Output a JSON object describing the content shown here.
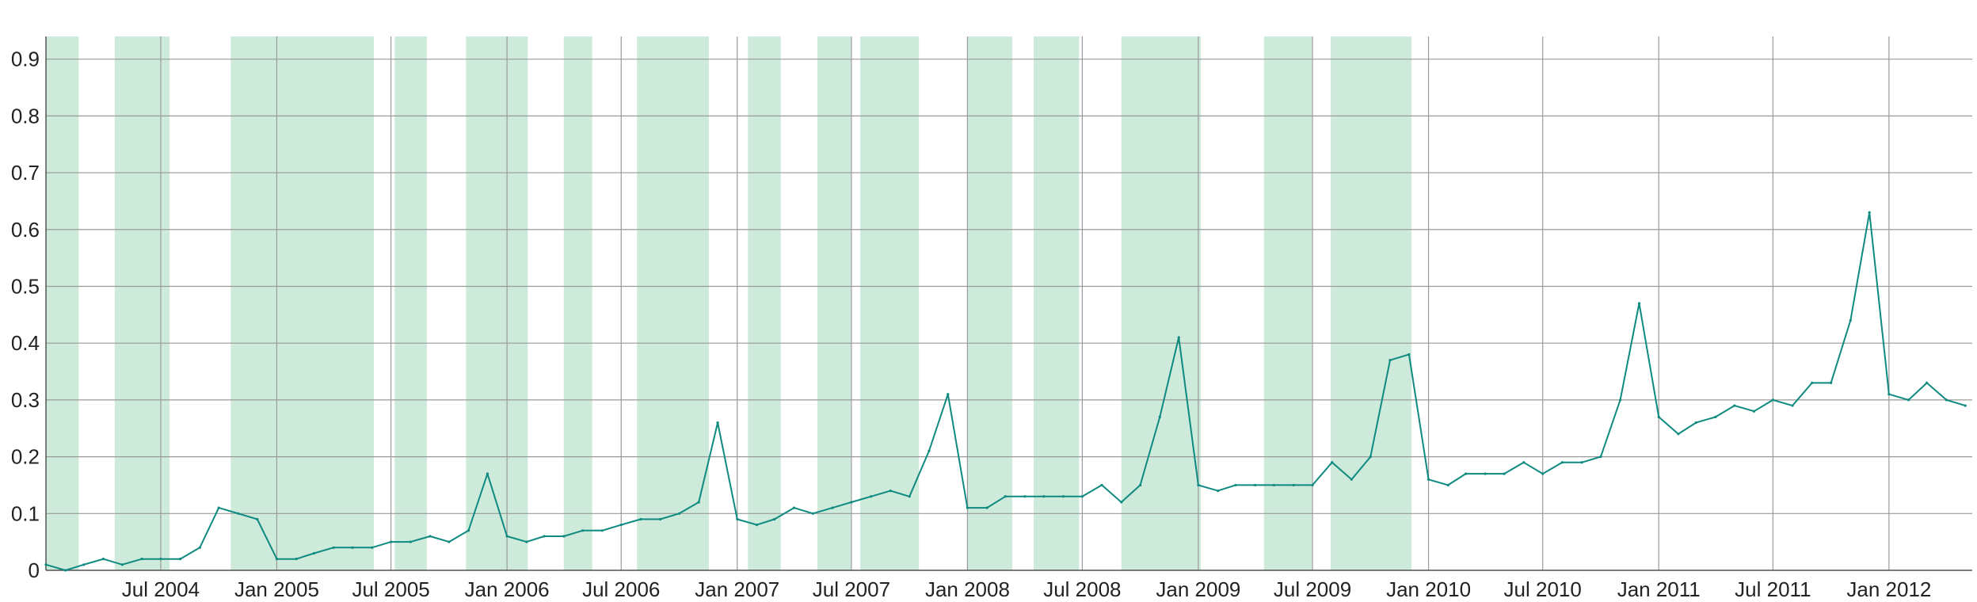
{
  "chart_data": {
    "type": "line",
    "title": "",
    "xlabel": "",
    "ylabel": "",
    "x_range": [
      "2004-01-01",
      "2012-05-12"
    ],
    "ylim": [
      0,
      0.94
    ],
    "y_ticks": [
      0,
      0.1,
      0.2,
      0.3,
      0.4,
      0.5,
      0.6,
      0.7,
      0.8,
      0.9
    ],
    "y_tick_labels": [
      "0",
      "0.1",
      "0.2",
      "0.3",
      "0.4",
      "0.5",
      "0.6",
      "0.7",
      "0.8",
      "0.9"
    ],
    "x_ticks": [
      "2004-07-01",
      "2005-01-01",
      "2005-07-01",
      "2006-01-01",
      "2006-07-01",
      "2007-01-01",
      "2007-07-01",
      "2008-01-01",
      "2008-07-01",
      "2009-01-01",
      "2009-07-01",
      "2010-01-01",
      "2010-07-01",
      "2011-01-01",
      "2011-07-01",
      "2012-01-01"
    ],
    "x_tick_labels": [
      "Jul 2004",
      "Jan 2005",
      "Jul 2005",
      "Jan 2006",
      "Jul 2006",
      "Jan 2007",
      "Jul 2007",
      "Jan 2008",
      "Jul 2008",
      "Jan 2009",
      "Jul 2009",
      "Jan 2010",
      "Jul 2010",
      "Jan 2011",
      "Jul 2011",
      "Jan 2012"
    ],
    "grid": true,
    "legend": "none",
    "colors": {
      "line": "#0e8a80",
      "band": "#cdeadb",
      "grid": "#9a9a9a",
      "axis": "#555555"
    },
    "bands": [
      [
        "2004-01-01",
        "2004-02-22"
      ],
      [
        "2004-04-19",
        "2004-07-15"
      ],
      [
        "2004-10-20",
        "2005-06-04"
      ],
      [
        "2005-07-07",
        "2005-08-27"
      ],
      [
        "2005-10-28",
        "2006-02-03"
      ],
      [
        "2006-04-01",
        "2006-05-16"
      ],
      [
        "2006-07-26",
        "2006-11-17"
      ],
      [
        "2007-01-18",
        "2007-03-11"
      ],
      [
        "2007-05-08",
        "2007-06-30"
      ],
      [
        "2007-07-15",
        "2007-10-16"
      ],
      [
        "2008-01-01",
        "2008-03-12"
      ],
      [
        "2008-04-15",
        "2008-06-26"
      ],
      [
        "2008-09-01",
        "2009-01-05"
      ],
      [
        "2009-04-15",
        "2009-06-30"
      ],
      [
        "2009-07-30",
        "2009-12-05"
      ]
    ],
    "series": [
      {
        "name": "",
        "x": [
          "2004-01-01",
          "2004-02-01",
          "2004-03-01",
          "2004-04-01",
          "2004-05-01",
          "2004-06-01",
          "2004-07-01",
          "2004-08-01",
          "2004-09-01",
          "2004-10-01",
          "2004-11-01",
          "2004-12-01",
          "2005-01-01",
          "2005-02-01",
          "2005-03-01",
          "2005-04-01",
          "2005-05-01",
          "2005-06-01",
          "2005-07-01",
          "2005-08-01",
          "2005-09-01",
          "2005-10-01",
          "2005-11-01",
          "2005-12-01",
          "2006-01-01",
          "2006-02-01",
          "2006-03-01",
          "2006-04-01",
          "2006-05-01",
          "2006-06-01",
          "2006-07-01",
          "2006-08-01",
          "2006-09-01",
          "2006-10-01",
          "2006-11-01",
          "2006-12-01",
          "2007-01-01",
          "2007-02-01",
          "2007-03-01",
          "2007-04-01",
          "2007-05-01",
          "2007-06-01",
          "2007-07-01",
          "2007-08-01",
          "2007-09-01",
          "2007-10-01",
          "2007-11-01",
          "2007-12-01",
          "2008-01-01",
          "2008-02-01",
          "2008-03-01",
          "2008-04-01",
          "2008-05-01",
          "2008-06-01",
          "2008-07-01",
          "2008-08-01",
          "2008-09-01",
          "2008-10-01",
          "2008-11-01",
          "2008-12-01",
          "2009-01-01",
          "2009-02-01",
          "2009-03-01",
          "2009-04-01",
          "2009-05-01",
          "2009-06-01",
          "2009-07-01",
          "2009-08-01",
          "2009-09-01",
          "2009-10-01",
          "2009-11-01",
          "2009-12-01",
          "2010-01-01",
          "2010-02-01",
          "2010-03-01",
          "2010-04-01",
          "2010-05-01",
          "2010-06-01",
          "2010-07-01",
          "2010-08-01",
          "2010-09-01",
          "2010-10-01",
          "2010-11-01",
          "2010-12-01",
          "2011-01-01",
          "2011-02-01",
          "2011-03-01",
          "2011-04-01",
          "2011-05-01",
          "2011-06-01",
          "2011-07-01",
          "2011-08-01",
          "2011-09-01",
          "2011-10-01",
          "2011-11-01",
          "2011-12-01",
          "2012-01-01",
          "2012-02-01",
          "2012-03-01",
          "2012-04-01",
          "2012-05-01"
        ],
        "values": [
          0.01,
          0.0,
          0.01,
          0.02,
          0.01,
          0.02,
          0.02,
          0.02,
          0.04,
          0.11,
          0.1,
          0.09,
          0.02,
          0.02,
          0.03,
          0.04,
          0.04,
          0.04,
          0.05,
          0.05,
          0.06,
          0.05,
          0.07,
          0.17,
          0.06,
          0.05,
          0.06,
          0.06,
          0.07,
          0.07,
          0.08,
          0.09,
          0.09,
          0.1,
          0.12,
          0.26,
          0.09,
          0.08,
          0.09,
          0.11,
          0.1,
          0.11,
          0.12,
          0.13,
          0.14,
          0.13,
          0.21,
          0.31,
          0.11,
          0.11,
          0.13,
          0.13,
          0.13,
          0.13,
          0.13,
          0.15,
          0.12,
          0.15,
          0.27,
          0.41,
          0.15,
          0.14,
          0.15,
          0.15,
          0.15,
          0.15,
          0.15,
          0.19,
          0.16,
          0.2,
          0.37,
          0.38,
          0.16,
          0.15,
          0.17,
          0.17,
          0.17,
          0.19,
          0.17,
          0.19,
          0.19,
          0.2,
          0.3,
          0.47,
          0.27,
          0.24,
          0.26,
          0.27,
          0.29,
          0.28,
          0.3,
          0.29,
          0.33,
          0.33,
          0.44,
          0.63,
          0.31,
          0.3,
          0.33,
          0.3,
          0.29
        ]
      }
    ]
  }
}
